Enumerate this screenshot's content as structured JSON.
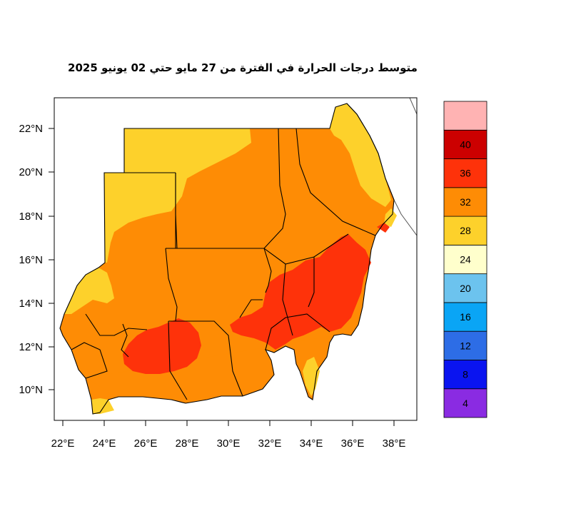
{
  "title": "متوسط درجات الحرارة في الفترة من 27 مايو حتي 02 يونيو 2025",
  "map": {
    "lon_labels": [
      "22°E",
      "24°E",
      "26°E",
      "28°E",
      "30°E",
      "32°E",
      "34°E",
      "36°E",
      "38°E"
    ],
    "lat_labels": [
      "22°N",
      "20°N",
      "18°N",
      "16°N",
      "14°N",
      "12°N",
      "10°N"
    ]
  },
  "colorbar": {
    "labels": [
      "4",
      "8",
      "12",
      "16",
      "20",
      "24",
      "28",
      "32",
      "36",
      "40"
    ],
    "colors": [
      "#8a2be2",
      "#0a14f0",
      "#2d6de6",
      "#0aa5f5",
      "#6cc3ee",
      "#ffffcc",
      "#fdd12b",
      "#fe8c05",
      "#fe320a",
      "#cc0000",
      "#ffb3b3"
    ]
  }
}
